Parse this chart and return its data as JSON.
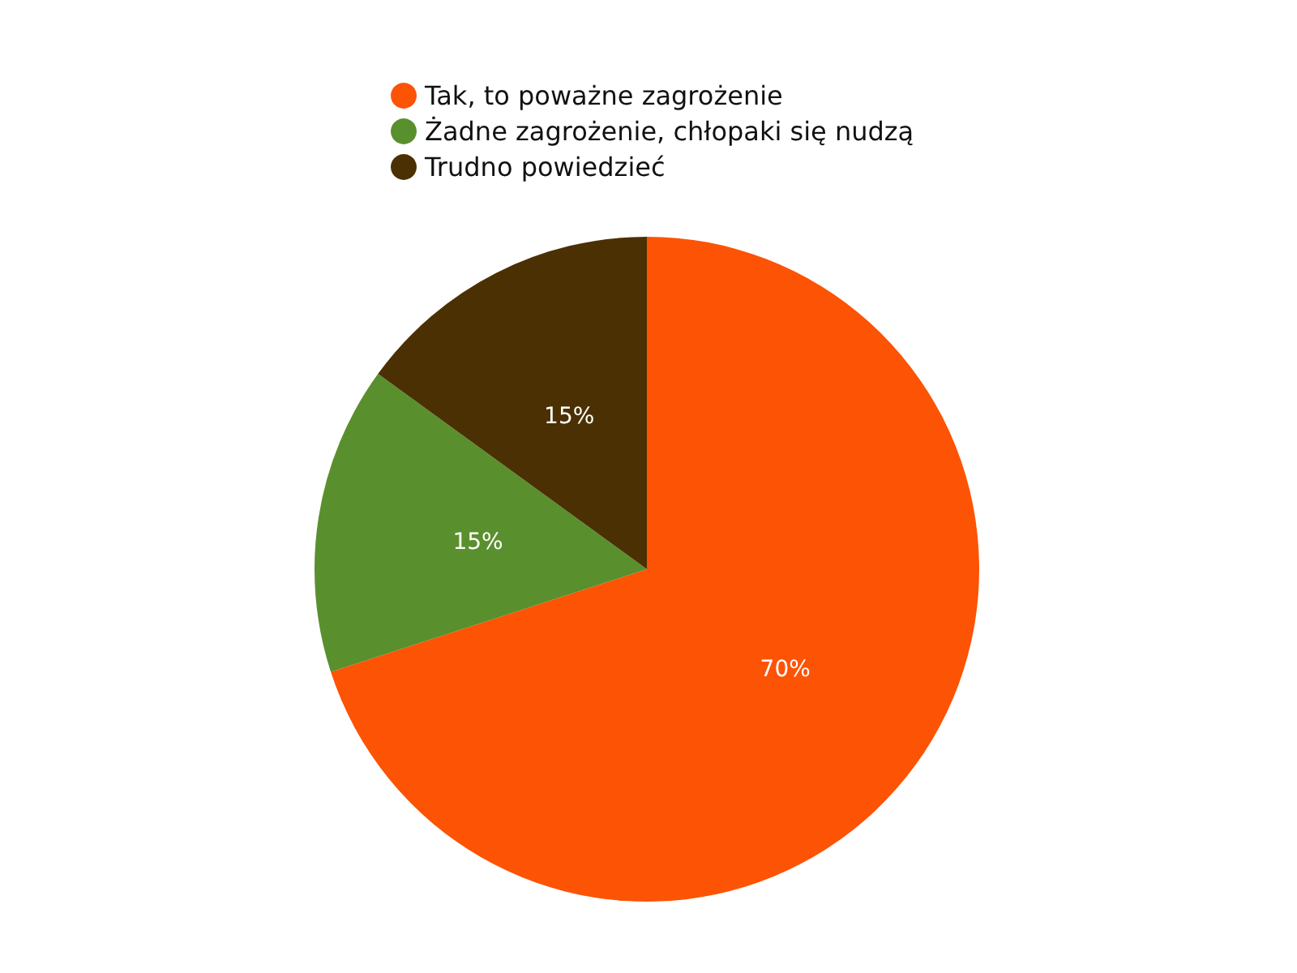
{
  "chart_data": {
    "type": "pie",
    "categories": [
      "Tak, to poważne zagrożenie",
      "Żadne zagrożenie, chłopaki się nudzą",
      "Trudno powiedzieć"
    ],
    "values": [
      70,
      15,
      15
    ],
    "colors": [
      "#fd5305",
      "#5a8f2e",
      "#4a3002"
    ],
    "value_labels": [
      "70%",
      "15%",
      "15%"
    ],
    "legend": "top"
  }
}
